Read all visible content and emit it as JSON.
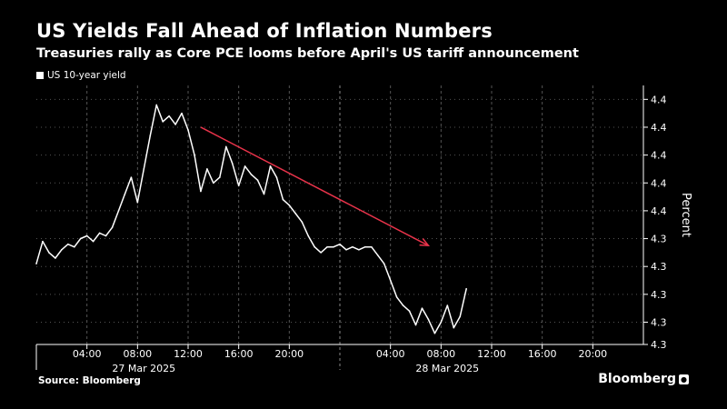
{
  "header": {
    "title": "US Yields Fall Ahead of Inflation Numbers",
    "subtitle": "Treasuries rally as Core PCE looms before April's US tariff announcement"
  },
  "footer": {
    "source": "Source: Bloomberg",
    "brand": "Bloomberg"
  },
  "colors": {
    "background": "#000000",
    "line": "#ffffff",
    "arrow": "#e8334a",
    "grid": "#555555"
  },
  "chart_data": {
    "type": "line",
    "legend_position": "top-left",
    "grid": true,
    "ylabel": "Percent",
    "x_tick_labels": [
      "04:00",
      "08:00",
      "12:00",
      "16:00",
      "20:00",
      "04:00",
      "08:00",
      "12:00",
      "16:00",
      "20:00"
    ],
    "x_tick_hours": [
      4,
      8,
      12,
      16,
      20,
      28,
      32,
      36,
      40,
      44
    ],
    "date_labels": [
      {
        "label": "27 Mar 2025",
        "hour": 8.5
      },
      {
        "label": "28 Mar 2025",
        "hour": 32.5
      }
    ],
    "day_separator_hour": 24,
    "xlim_hours": [
      0,
      48
    ],
    "y_tick_labels": [
      "4.4",
      "4.4",
      "4.4",
      "4.4",
      "4.4",
      "4.3",
      "4.3",
      "4.3",
      "4.3",
      "4.3"
    ],
    "y_tick_values": [
      4.385,
      4.375,
      4.365,
      4.355,
      4.345,
      4.335,
      4.325,
      4.315,
      4.305,
      4.297
    ],
    "ylim": [
      4.297,
      4.39
    ],
    "series": [
      {
        "name": "US 10-year yield",
        "x_hours": [
          0,
          0.5,
          1,
          1.5,
          2,
          2.5,
          3,
          3.5,
          4,
          4.5,
          5,
          5.5,
          6,
          6.5,
          7,
          7.5,
          8,
          8.5,
          9,
          9.5,
          10,
          10.5,
          11,
          11.5,
          12,
          12.5,
          13,
          13.5,
          14,
          14.5,
          15,
          15.5,
          16,
          16.5,
          17,
          17.5,
          18,
          18.5,
          19,
          19.5,
          20,
          20.5,
          21,
          21.5,
          22,
          22.5,
          23,
          23.5,
          24,
          24.5,
          25,
          25.5,
          26,
          26.5,
          27,
          27.5,
          28,
          28.5,
          29,
          29.5,
          30,
          30.5,
          31,
          31.5,
          32,
          32.5,
          33,
          33.5,
          34
        ],
        "values": [
          4.326,
          4.334,
          4.33,
          4.328,
          4.331,
          4.333,
          4.332,
          4.335,
          4.336,
          4.334,
          4.337,
          4.336,
          4.339,
          4.345,
          4.351,
          4.357,
          4.348,
          4.36,
          4.372,
          4.383,
          4.377,
          4.379,
          4.376,
          4.38,
          4.374,
          4.365,
          4.352,
          4.36,
          4.355,
          4.357,
          4.368,
          4.362,
          4.354,
          4.361,
          4.358,
          4.356,
          4.351,
          4.361,
          4.357,
          4.349,
          4.347,
          4.344,
          4.341,
          4.336,
          4.332,
          4.33,
          4.332,
          4.332,
          4.333,
          4.331,
          4.332,
          4.331,
          4.332,
          4.332,
          4.329,
          4.326,
          4.32,
          4.314,
          4.311,
          4.309,
          4.304,
          4.31,
          4.306,
          4.301,
          4.305,
          4.311,
          4.303,
          4.307,
          4.317
        ]
      }
    ],
    "annotations": [
      {
        "type": "arrow",
        "from": {
          "hour": 13,
          "value": 4.375
        },
        "to": {
          "hour": 31,
          "value": 4.3325
        }
      }
    ]
  }
}
